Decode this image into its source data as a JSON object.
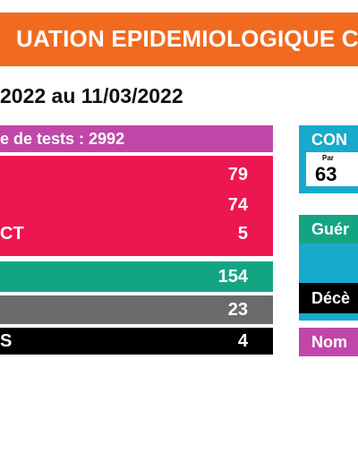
{
  "banner": {
    "title": "UATION EPIDEMIOLOGIQUE C"
  },
  "period": {
    "text": "2022 au 11/03/2022"
  },
  "left_table": {
    "tests": {
      "label": "e de tests : 2992"
    },
    "red_rows": [
      {
        "label": "",
        "value": "79"
      },
      {
        "label": "",
        "value": "74"
      },
      {
        "label": "CT",
        "value": "5"
      }
    ],
    "green_row": {
      "value": "154"
    },
    "grey_row": {
      "value": "23"
    },
    "black_row": {
      "label": "S",
      "value": "4"
    }
  },
  "right_panel": {
    "confirmed": {
      "label": "CON",
      "sub_label": "Par",
      "value": "63"
    },
    "recovered": {
      "label": "Guér"
    },
    "deaths": {
      "label": "Décè"
    },
    "number": {
      "label": "Nom"
    }
  },
  "colors": {
    "banner": "#f26a1e",
    "magenta": "#c047a8",
    "red": "#ee1650",
    "green": "#13a583",
    "grey": "#6b6b6b",
    "black": "#000000",
    "teal": "#17aacb"
  }
}
